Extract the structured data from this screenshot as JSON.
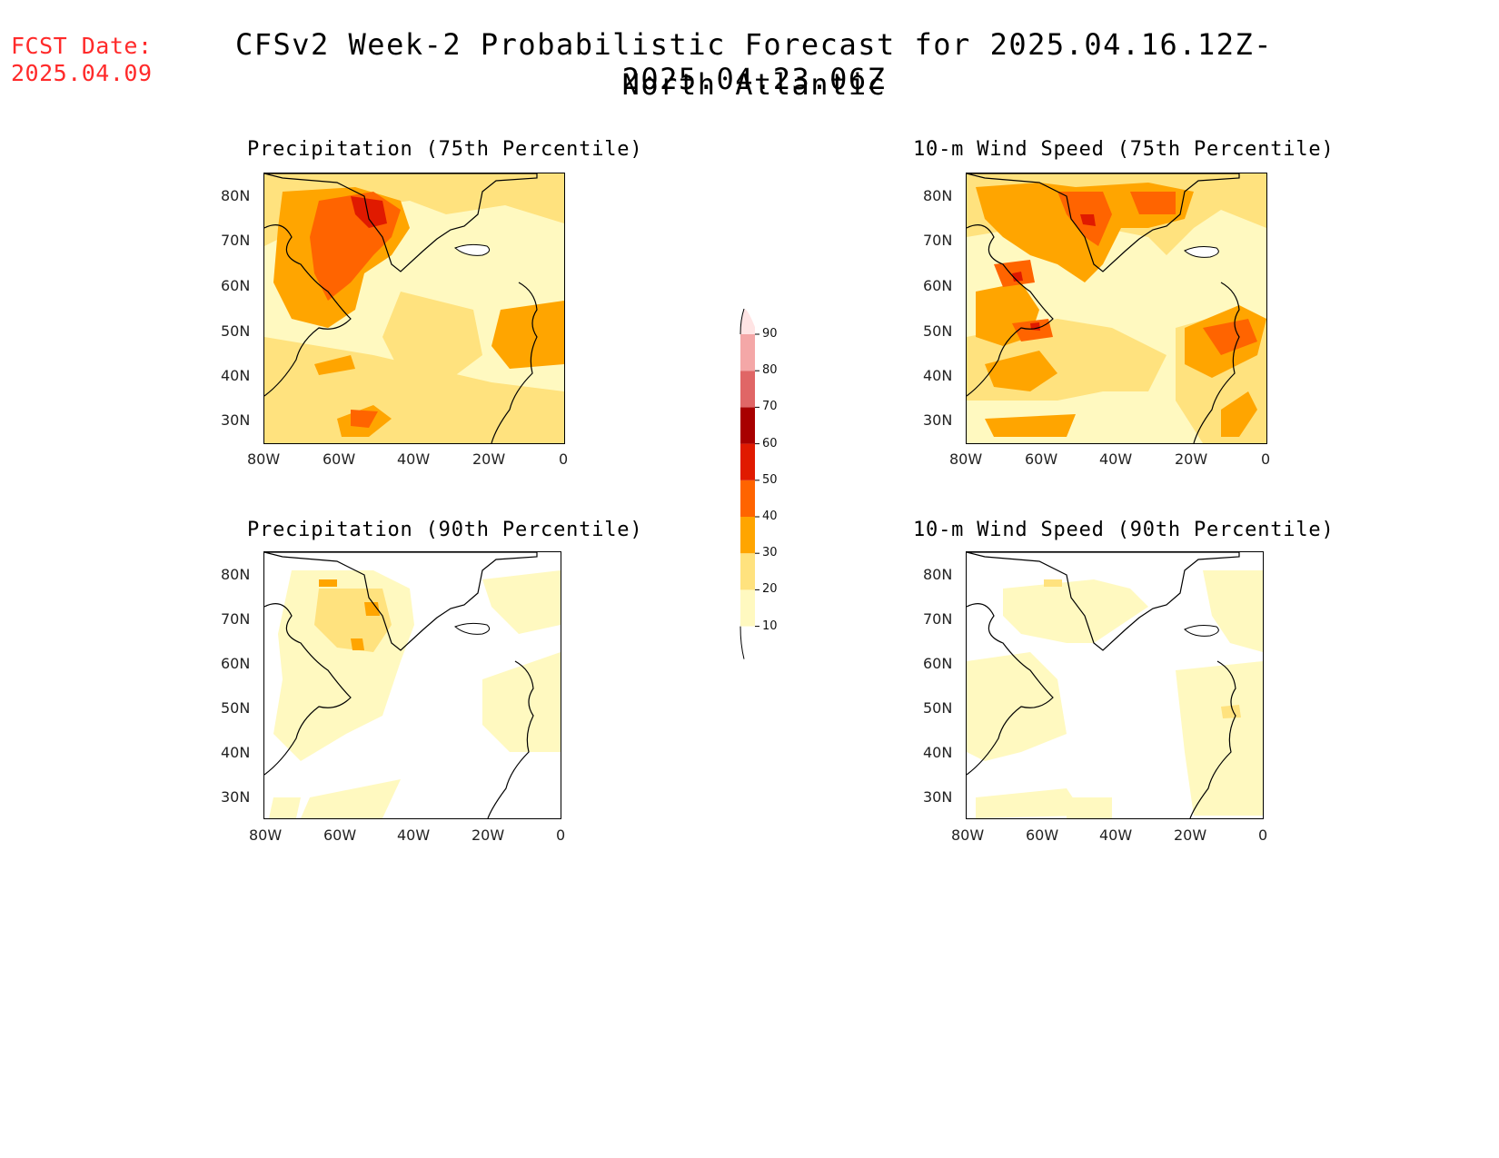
{
  "header": {
    "fcst_label": "FCST Date:",
    "fcst_date": "2025.04.09",
    "title": "CFSv2 Week-2 Probabilistic Forecast for 2025.04.16.12Z-2025.04.23.06Z",
    "subtitle": "North Atlantic"
  },
  "axes": {
    "lat_labels": [
      "80N",
      "70N",
      "60N",
      "50N",
      "40N",
      "30N"
    ],
    "lon_labels": [
      "80W",
      "60W",
      "40W",
      "20W",
      "0"
    ]
  },
  "panels": [
    {
      "title": "Precipitation (75th Percentile)"
    },
    {
      "title": "10-m Wind Speed (75th Percentile)"
    },
    {
      "title": "Precipitation (90th Percentile)"
    },
    {
      "title": "10-m Wind Speed (90th Percentile)"
    }
  ],
  "colorbar": {
    "levels": [
      "10",
      "20",
      "30",
      "40",
      "50",
      "60",
      "70",
      "80",
      "90"
    ],
    "colors": [
      "#fff9c0",
      "#ffe27e",
      "#ffa500",
      "#ff6400",
      "#e01a00",
      "#a80000",
      "#e06666",
      "#f4a7a7",
      "#ffe4e4"
    ]
  },
  "palette": {
    "fcst_color": "#ff2a2a",
    "land_line": "#000000",
    "bin_10_20": "#fff9c0",
    "bin_20_30": "#ffe27e",
    "bin_30_40": "#ffa500",
    "bin_40_50": "#ff6400",
    "bin_50_60": "#e01a00"
  }
}
